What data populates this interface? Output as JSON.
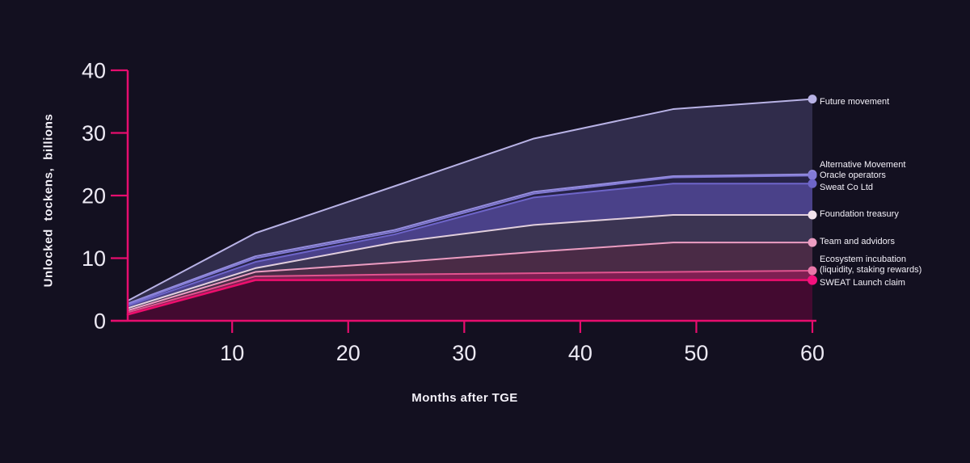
{
  "app": {
    "background": "#131020"
  },
  "chart_data": {
    "type": "area",
    "title": "",
    "xlabel": "Months after TGE",
    "ylabel": "Unlocked tockens, billions",
    "x": [
      1,
      12,
      24,
      36,
      48,
      60
    ],
    "x_ticks": [
      10,
      20,
      30,
      40,
      50,
      60
    ],
    "y_ticks": [
      0,
      10,
      20,
      30,
      40
    ],
    "xlim": [
      1,
      60
    ],
    "ylim": [
      0,
      40
    ],
    "values_are": "cumulative stack-top boundaries, series listed top to bottom",
    "legend_position": "right",
    "grid": false,
    "axis_color": "#e60d6e",
    "tick_label_color": "#edeaf4",
    "label_color": "#f3f0f8",
    "series": [
      {
        "name": "Future movement",
        "label_lines": [
          "Future movement"
        ],
        "values": [
          3.2,
          14.0,
          21.5,
          29.1,
          33.8,
          35.4
        ],
        "line_color": "#b8b2e5",
        "fill_color": "#302c4b",
        "dot_color": "#b8b2e5"
      },
      {
        "name": "Alternative Movement",
        "label_lines": [
          "Alternative Movement"
        ],
        "values": [
          2.75,
          10.3,
          14.5,
          20.6,
          23.1,
          23.4
        ],
        "line_color": "#958dde",
        "fill_color": "#29254a",
        "dot_color": "#958dde"
      },
      {
        "name": "Oracle operators",
        "label_lines": [
          "Oracle operators"
        ],
        "values": [
          2.6,
          10.0,
          14.2,
          20.3,
          22.9,
          23.2
        ],
        "line_color": "#837bd6",
        "fill_color": "#272348",
        "dot_color": "#837bd6"
      },
      {
        "name": "Sweat Co Ltd",
        "label_lines": [
          "Sweat Co Ltd"
        ],
        "values": [
          2.4,
          9.4,
          13.8,
          19.7,
          21.9,
          21.9
        ],
        "line_color": "#6e65c9",
        "fill_color": "#4a4189",
        "dot_color": "#6e65c9"
      },
      {
        "name": "Foundation treasury",
        "label_lines": [
          "Foundation treasury"
        ],
        "values": [
          2.0,
          8.4,
          12.5,
          15.3,
          16.9,
          16.9
        ],
        "line_color": "#e2cfdd",
        "fill_color": "#3b3452",
        "dot_color": "#f2e3ec"
      },
      {
        "name": "Team and advidors",
        "label_lines": [
          "Team and advidors"
        ],
        "values": [
          1.65,
          7.8,
          9.3,
          11.0,
          12.5,
          12.5
        ],
        "line_color": "#ec9dc2",
        "fill_color": "#4a2b46",
        "dot_color": "#ec9dc2"
      },
      {
        "name": "Ecosystem incubation (liquidity, staking rewards)",
        "label_lines": [
          "Ecosystem incubation",
          "(liquidity, staking rewards)"
        ],
        "values": [
          1.35,
          7.1,
          7.4,
          7.6,
          7.8,
          8.0
        ],
        "line_color": "#e1538f",
        "fill_color": "#7e1f52",
        "dot_color": "#e876a8"
      },
      {
        "name": "SWEAT Launch claim",
        "label_lines": [
          "SWEAT Launch claim"
        ],
        "values": [
          1.0,
          6.5,
          6.5,
          6.5,
          6.5,
          6.5
        ],
        "line_color": "#ee0e6d",
        "fill_color": "#430a30",
        "dot_color": "#f3117e"
      }
    ]
  }
}
